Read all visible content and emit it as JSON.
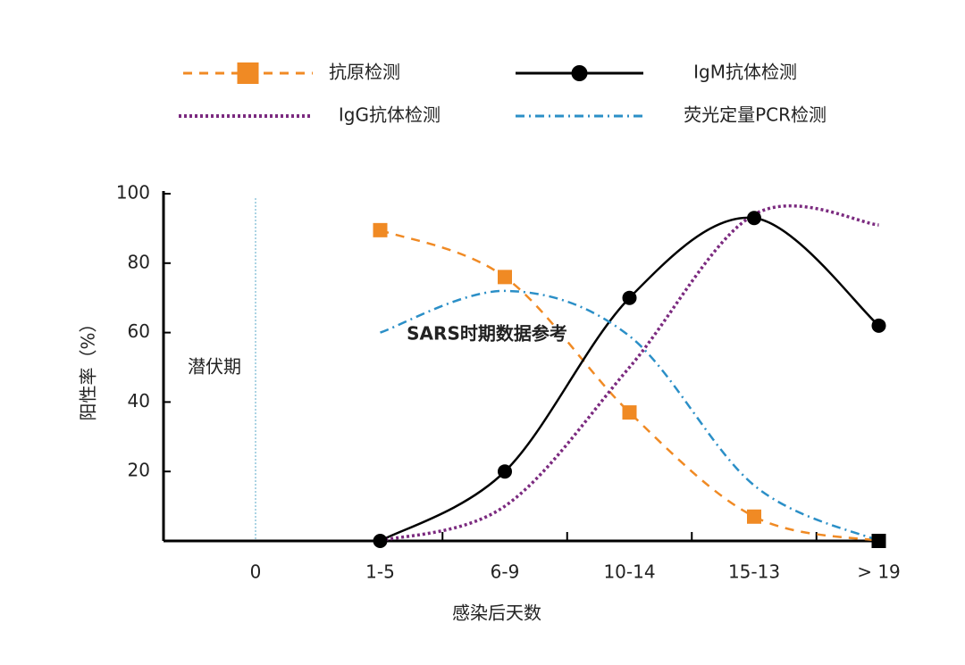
{
  "chart_data": {
    "type": "line",
    "y_label": "阳性率（%）",
    "x_label": "感染后天数",
    "categories": [
      "0",
      "1-5",
      "6-9",
      "10-14",
      "15-13",
      "> 19"
    ],
    "series": [
      {
        "name": "抗原检测",
        "color": "#f08a24",
        "linestyle": "dashed",
        "marker": "square",
        "values": [
          null,
          89.5,
          76,
          37,
          7,
          0
        ]
      },
      {
        "name": "IgM抗体检测",
        "color": "#000000",
        "linestyle": "solid",
        "marker": "circle",
        "values": [
          null,
          0,
          20,
          70,
          93,
          62
        ]
      },
      {
        "name": "IgG抗体检测",
        "color": "#7b2a7f",
        "linestyle": "dotted",
        "values": [
          null,
          0,
          10,
          50,
          94,
          91
        ]
      },
      {
        "name": "荧光定量PCR检测",
        "color": "#2b8fc7",
        "linestyle": "dashdot",
        "values": [
          null,
          60,
          72,
          59,
          16,
          0
        ]
      }
    ],
    "ylim": [
      0,
      100
    ],
    "yticks": [
      20,
      40,
      60,
      80,
      100
    ],
    "annotations": [
      "潜伏期",
      "SARS时期数据参考"
    ]
  }
}
